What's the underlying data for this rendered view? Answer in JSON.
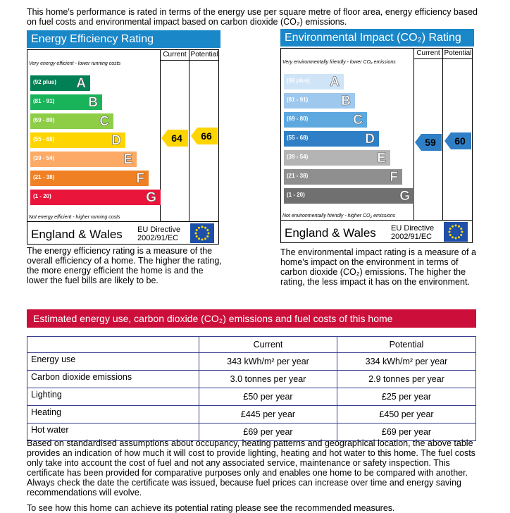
{
  "intro": "This home's performance is rated in terms of the energy use per square metre of floor area, energy efficiency based on fuel costs and environmental impact based on carbon dioxide (CO₂) emissions.",
  "energy_rating": {
    "title": "Energy Efficiency Rating",
    "column_current": "Current",
    "column_potential": "Potential",
    "top_note": "Very energy efficient - lower running costs",
    "bands": [
      {
        "range": "(92 plus)",
        "letter": "A"
      },
      {
        "range": "(81 - 91)",
        "letter": "B"
      },
      {
        "range": "(69 - 80)",
        "letter": "C"
      },
      {
        "range": "(55 - 68)",
        "letter": "D"
      },
      {
        "range": "(39 - 54)",
        "letter": "E"
      },
      {
        "range": "(21 - 38)",
        "letter": "F"
      },
      {
        "range": "(1 - 20)",
        "letter": "G"
      }
    ],
    "bottom_note": "Not energy efficient - higher running costs",
    "region": "England & Wales",
    "directive": "EU Directive",
    "directive_code": "2002/91/EC",
    "current": 64,
    "potential": 66,
    "description": "The energy efficiency rating is a measure of the overall efficiency of a home. The higher the rating, the more energy efficient the home is and the lower the fuel bills are likely to be."
  },
  "environmental_rating": {
    "title": "Environmental Impact (CO₂) Rating",
    "column_current": "Current",
    "column_potential": "Potential",
    "top_note": "Very environmentally friendly - lower CO₂ emissions",
    "bands": [
      {
        "range": "(92 plus)",
        "letter": "A"
      },
      {
        "range": "(81 - 91)",
        "letter": "B"
      },
      {
        "range": "(69 - 80)",
        "letter": "C"
      },
      {
        "range": "(55 - 68)",
        "letter": "D"
      },
      {
        "range": "(39 - 54)",
        "letter": "E"
      },
      {
        "range": "(21 - 38)",
        "letter": "F"
      },
      {
        "range": "(1 - 20)",
        "letter": "G"
      }
    ],
    "bottom_note": "Not environmentally friendly - higher CO₂ emissions",
    "region": "England & Wales",
    "directive": "EU Directive",
    "directive_code": "2002/91/EC",
    "current": 59,
    "potential": 60,
    "description": "The environmental impact rating is a measure of a home's impact on the environment in terms of carbon dioxide (CO₂) emissions. The higher the rating, the less impact it has on the environment."
  },
  "estimates": {
    "title": "Estimated energy use, carbon dioxide (CO₂) emissions and fuel costs of this home",
    "columns": [
      "Current",
      "Potential"
    ],
    "rows": [
      [
        "Energy use",
        "343 kWh/m² per year",
        "334 kWh/m² per year"
      ],
      [
        "Carbon dioxide emissions",
        "3.0 tonnes per year",
        "2.9 tonnes per year"
      ],
      [
        "Lighting",
        "£50 per year",
        "£25 per year"
      ],
      [
        "Heating",
        "£445 per year",
        "£450 per year"
      ],
      [
        "Hot water",
        "£69 per year",
        "£69 per year"
      ]
    ]
  },
  "footer": "Based on standardised assumptions about occupancy, heating patterns and geographical location, the above table provides an indication of how much it will cost to provide lighting, heating and hot water to this home. The fuel costs only take into account the cost of fuel and not any associated service, maintenance or safety inspection. This certificate has been provided for comparative purposes only and enables one home to be compared with another. Always check the date the certificate was issued, because fuel prices can increase over time and energy saving recommendations will evolve.",
  "closing": "To see how this home can achieve its potential rating please see the recommended measures."
}
